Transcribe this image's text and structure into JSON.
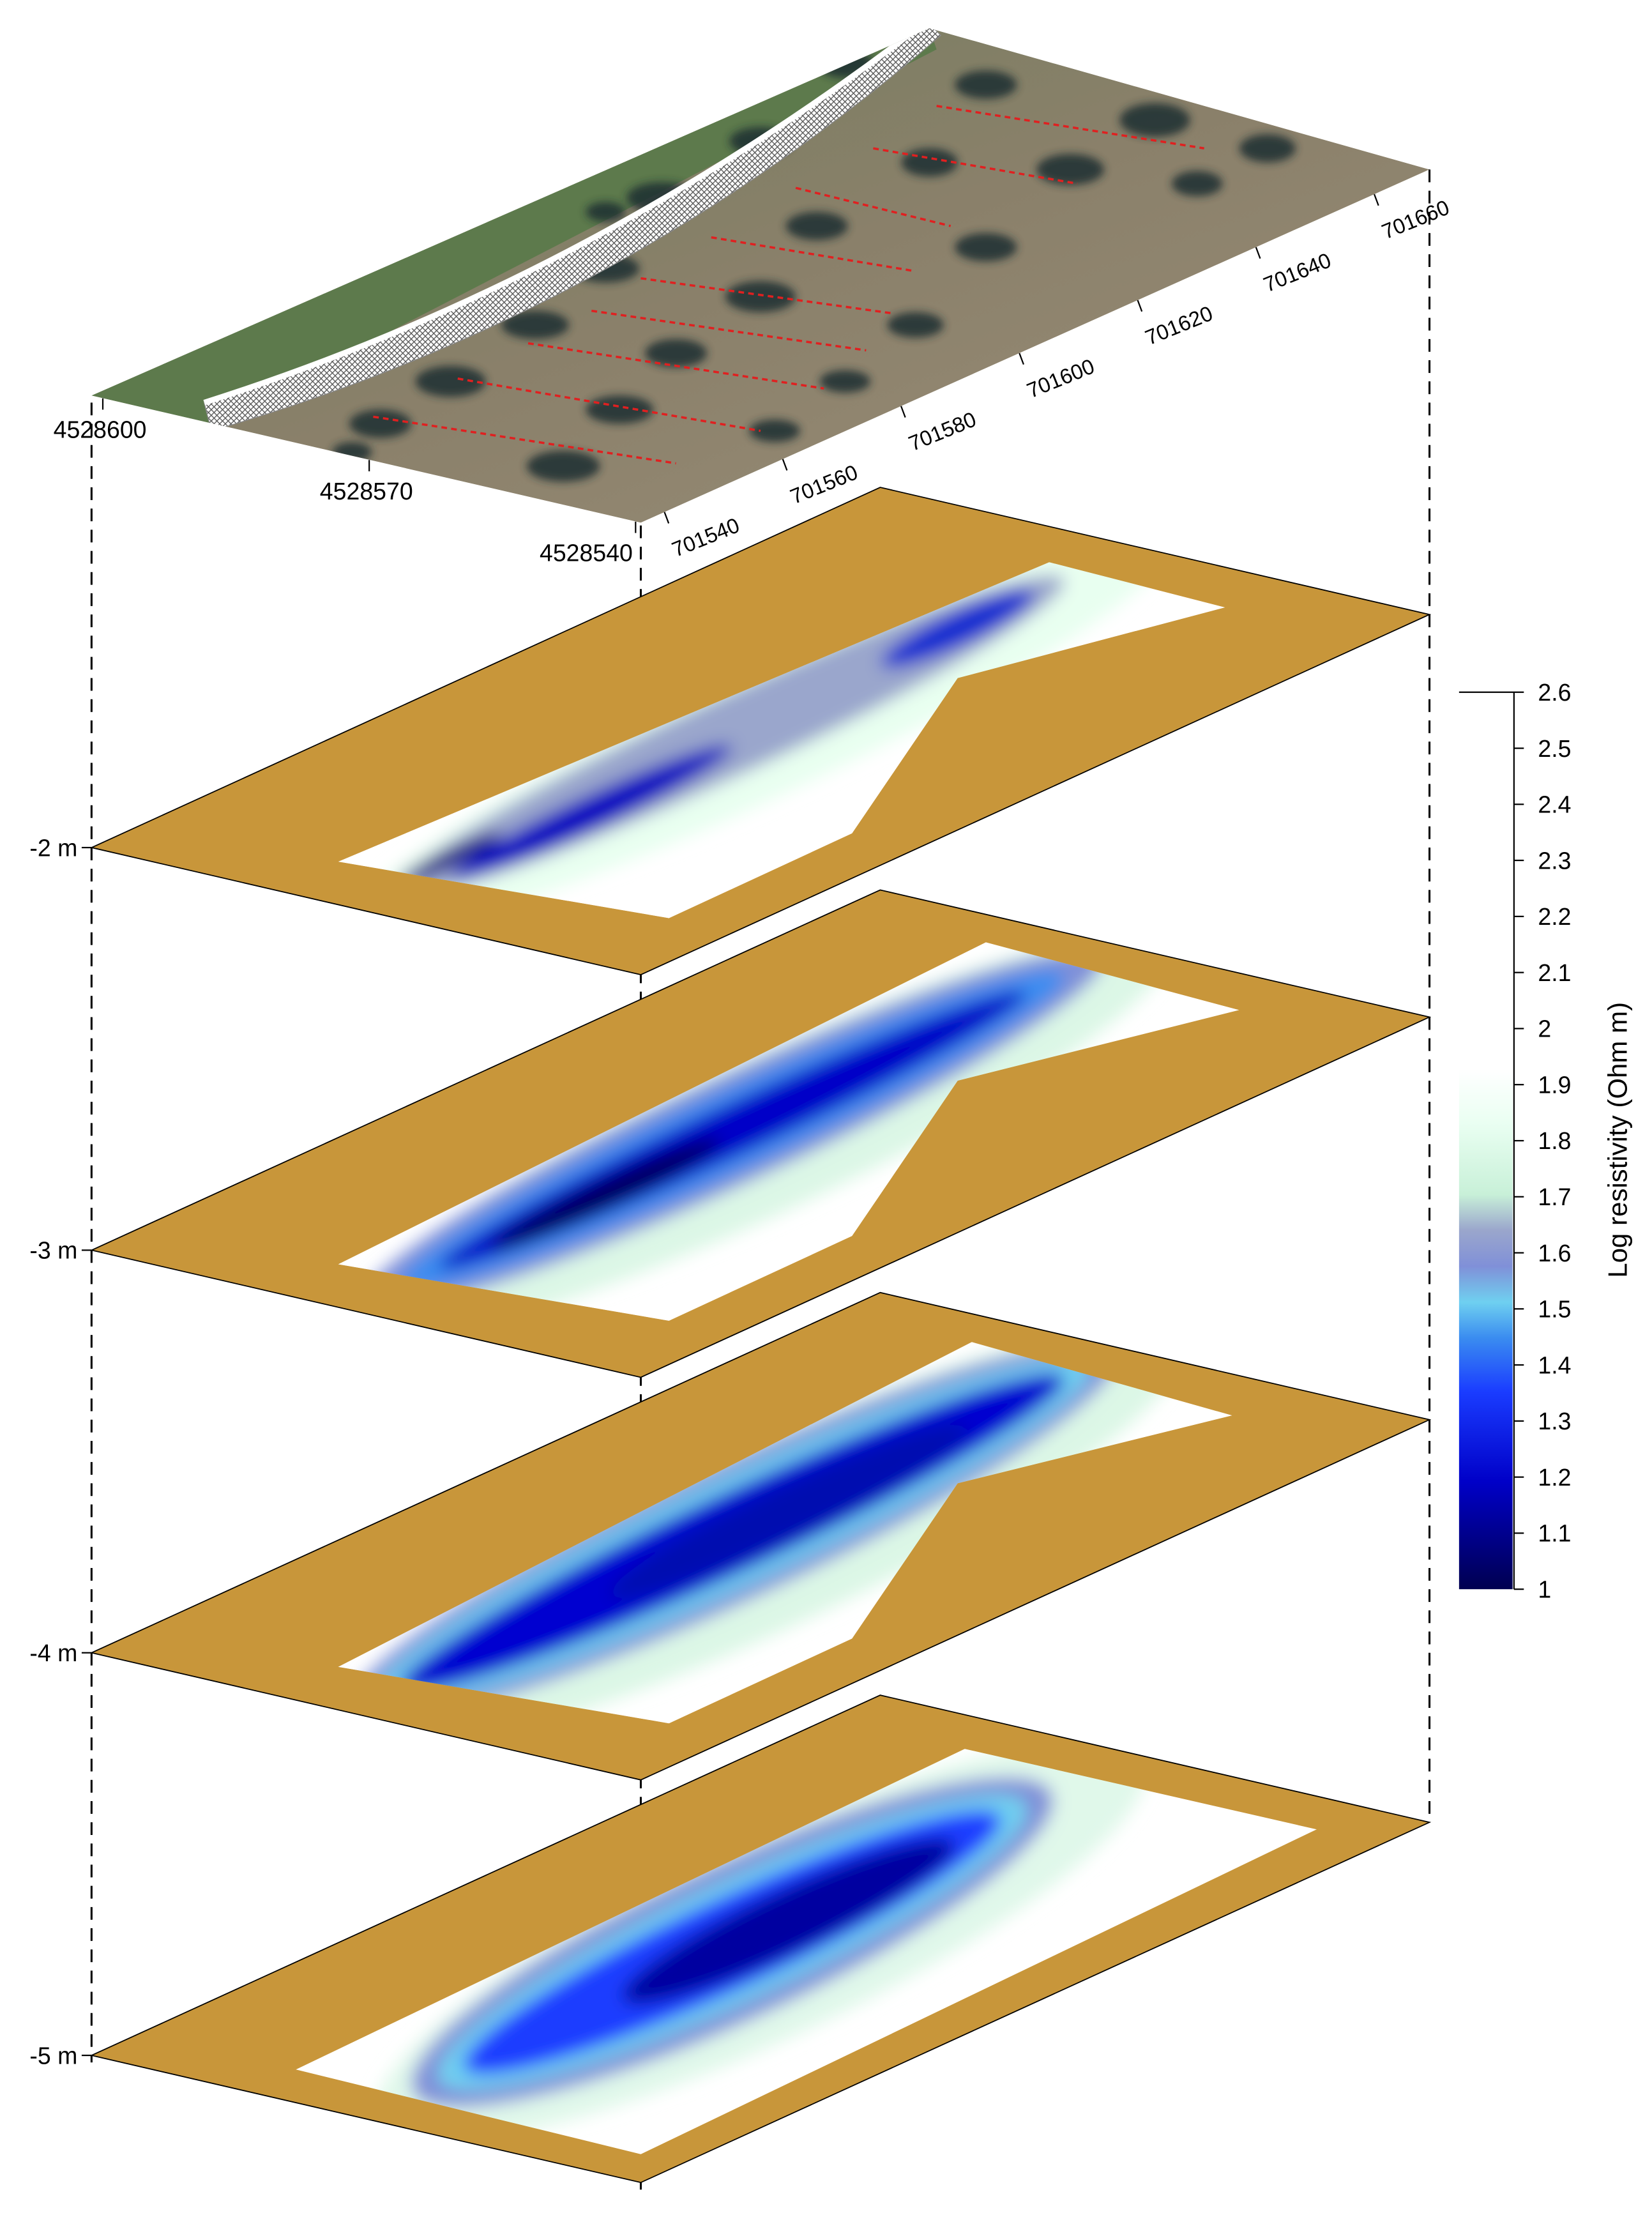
{
  "chart_data": {
    "type": "depth-slices",
    "northing_ticks": [
      4528600,
      4528570,
      4528540
    ],
    "easting_ticks": [
      701540,
      701560,
      701580,
      701600,
      701620,
      701640,
      701660
    ],
    "depth_labels": [
      "-2 m",
      "-3 m",
      "-4 m",
      "-5 m"
    ],
    "colorbar": {
      "label": "Log resistivity (Ohm m)",
      "lim": [
        1,
        2.6
      ],
      "ticks": [
        1,
        1.1,
        1.2,
        1.3,
        1.4,
        1.5,
        1.6,
        1.7,
        1.8,
        1.9,
        2,
        2.1,
        2.2,
        2.3,
        2.4,
        2.5,
        2.6
      ]
    }
  }
}
